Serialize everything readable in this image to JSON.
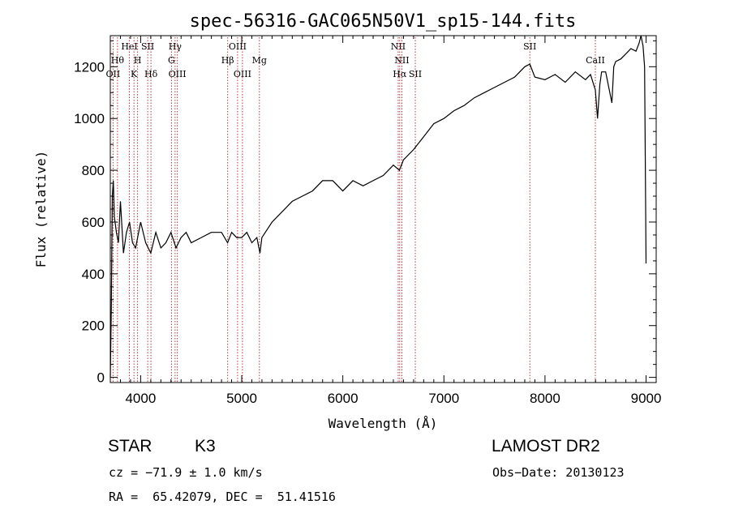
{
  "chart_data": {
    "type": "line",
    "title": "spec-56316-GAC065N50V1_sp15-144.fits",
    "xlabel": "Wavelength (Å)",
    "ylabel": "Flux (relative)",
    "xlim": [
      3700,
      9100
    ],
    "ylim": [
      -20,
      1320
    ],
    "xticks": [
      4000,
      5000,
      6000,
      7000,
      8000,
      9000
    ],
    "xtick_labels": [
      "4000",
      "5000",
      "6000",
      "7000",
      "8000",
      "9000"
    ],
    "yticks": [
      0,
      200,
      400,
      600,
      800,
      1000,
      1200
    ],
    "ytick_labels": [
      "0",
      "200",
      "400",
      "600",
      "800",
      "1000",
      "1200"
    ],
    "series": [
      {
        "name": "spectrum",
        "x": [
          3700,
          3710,
          3720,
          3730,
          3740,
          3760,
          3780,
          3800,
          3830,
          3860,
          3890,
          3920,
          3950,
          3980,
          4000,
          4050,
          4100,
          4150,
          4200,
          4250,
          4300,
          4350,
          4400,
          4450,
          4500,
          4600,
          4700,
          4800,
          4860,
          4900,
          4950,
          5000,
          5050,
          5100,
          5150,
          5180,
          5200,
          5300,
          5400,
          5500,
          5600,
          5700,
          5800,
          5900,
          6000,
          6100,
          6200,
          6300,
          6400,
          6500,
          6560,
          6600,
          6700,
          6800,
          6900,
          7000,
          7100,
          7200,
          7300,
          7400,
          7500,
          7600,
          7700,
          7800,
          7850,
          7900,
          8000,
          8100,
          8200,
          8300,
          8400,
          8450,
          8498,
          8520,
          8542,
          8560,
          8600,
          8662,
          8680,
          8700,
          8750,
          8800,
          8850,
          8900,
          8930,
          8950,
          8970,
          8985,
          8995,
          9000
        ],
        "y": [
          0,
          260,
          700,
          760,
          620,
          560,
          520,
          680,
          480,
          560,
          600,
          520,
          500,
          560,
          600,
          520,
          480,
          560,
          500,
          520,
          560,
          500,
          540,
          560,
          520,
          540,
          560,
          560,
          520,
          560,
          540,
          540,
          560,
          520,
          540,
          480,
          540,
          600,
          640,
          680,
          700,
          720,
          760,
          760,
          720,
          760,
          740,
          760,
          780,
          820,
          800,
          840,
          880,
          930,
          980,
          1000,
          1030,
          1050,
          1080,
          1100,
          1120,
          1140,
          1160,
          1200,
          1210,
          1160,
          1150,
          1170,
          1140,
          1180,
          1150,
          1170,
          1110,
          1000,
          1130,
          1180,
          1180,
          1060,
          1200,
          1220,
          1230,
          1250,
          1270,
          1260,
          1290,
          1320,
          1280,
          1200,
          700,
          440
        ]
      }
    ],
    "lines": [
      {
        "x": 3727,
        "labels": [
          "OII"
        ],
        "row": 3
      },
      {
        "x": 3771,
        "labels": [
          "Hθ"
        ],
        "row": 2
      },
      {
        "x": 3889,
        "labels": [
          "HeI"
        ],
        "row": 1
      },
      {
        "x": 3934,
        "labels": [
          "K"
        ],
        "row": 3
      },
      {
        "x": 3970,
        "labels": [
          "H"
        ],
        "row": 2
      },
      {
        "x": 4070,
        "labels": [
          "SII"
        ],
        "row": 1
      },
      {
        "x": 4102,
        "labels": [
          "Hδ"
        ],
        "row": 3
      },
      {
        "x": 4305,
        "labels": [
          "G"
        ],
        "row": 2
      },
      {
        "x": 4341,
        "labels": [
          "Hγ"
        ],
        "row": 1
      },
      {
        "x": 4363,
        "labels": [
          "OIII"
        ],
        "row": 3
      },
      {
        "x": 4861,
        "labels": [
          "Hβ"
        ],
        "row": 2
      },
      {
        "x": 4959,
        "labels": [
          "OIII"
        ],
        "row": 1
      },
      {
        "x": 5007,
        "labels": [
          "OIII"
        ],
        "row": 3
      },
      {
        "x": 5175,
        "labels": [
          "Mg"
        ],
        "row": 2
      },
      {
        "x": 6548,
        "labels": [
          "NII"
        ],
        "row": 1
      },
      {
        "x": 6563,
        "labels": [
          "Hα"
        ],
        "row": 3
      },
      {
        "x": 6584,
        "labels": [
          "NII"
        ],
        "row": 2
      },
      {
        "x": 6717,
        "labels": [
          "SII"
        ],
        "row": 3
      },
      {
        "x": 7850,
        "labels": [
          "SII"
        ],
        "row": 1
      },
      {
        "x": 8498,
        "labels": [
          "CaII"
        ],
        "row": 2
      }
    ]
  },
  "footer": {
    "object_type": "STAR",
    "subclass": "K3",
    "survey": "LAMOST DR2",
    "cz": "cz = −71.9 ± 1.0 km/s",
    "obs_date": "Obs−Date: 20130123",
    "coords": "RA =  65.42079, DEC =  51.41516"
  }
}
